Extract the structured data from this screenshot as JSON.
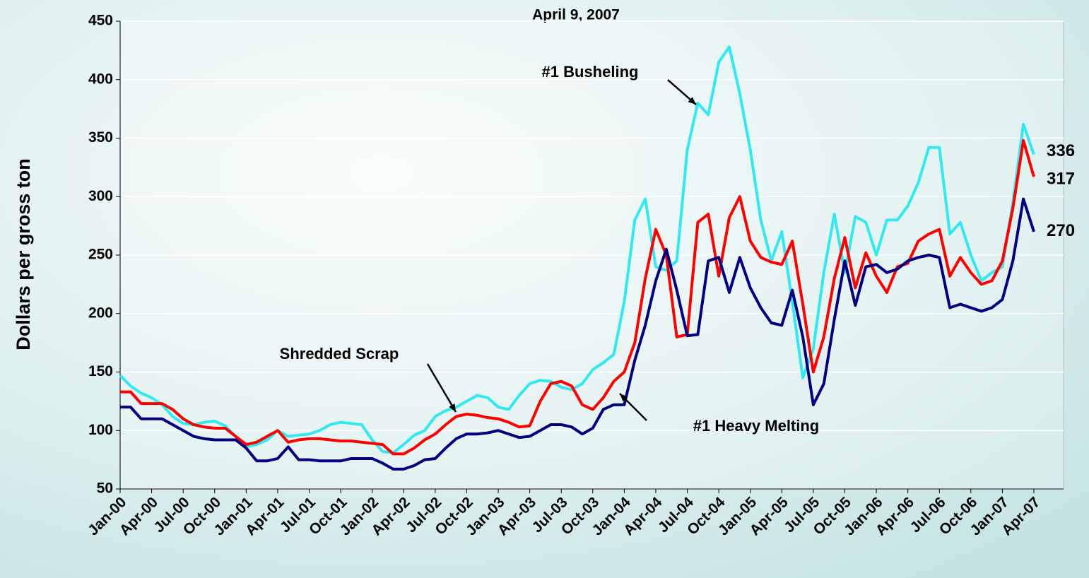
{
  "chart_data": {
    "type": "line",
    "title": "April 9, 2007",
    "y_label": "Dollars per gross ton",
    "categories": [
      "Jan-00",
      null,
      null,
      "Apr-00",
      null,
      null,
      "Jul-00",
      null,
      null,
      "Oct-00",
      null,
      null,
      "Jan-01",
      null,
      null,
      "Apr-01",
      null,
      null,
      "Jul-01",
      null,
      null,
      "Oct-01",
      null,
      null,
      "Jan-02",
      null,
      null,
      "Apr-02",
      null,
      null,
      "Jul-02",
      null,
      null,
      "Oct-02",
      null,
      null,
      "Jan-03",
      null,
      null,
      "Apr-03",
      null,
      null,
      "Jul-03",
      null,
      null,
      "Oct-03",
      null,
      null,
      "Jan-04",
      null,
      null,
      "Apr-04",
      null,
      null,
      "Jul-04",
      null,
      null,
      "Oct-04",
      null,
      null,
      "Jan-05",
      null,
      null,
      "Apr-05",
      null,
      null,
      "Jul-05",
      null,
      null,
      "Oct-05",
      null,
      null,
      "Jan-06",
      null,
      null,
      "Apr-06",
      null,
      null,
      "Jul-06",
      null,
      null,
      "Oct-06",
      null,
      null,
      "Jan-07",
      null,
      null,
      "Apr-07"
    ],
    "series": [
      {
        "name": "#1 Busheling",
        "color": "#33e8f2",
        "values": [
          147,
          138,
          132,
          128,
          122,
          112,
          106,
          105,
          107,
          108,
          104,
          95,
          86,
          88,
          92,
          100,
          95,
          96,
          97,
          100,
          105,
          107,
          106,
          105,
          92,
          82,
          81,
          88,
          96,
          100,
          112,
          117,
          120,
          125,
          130,
          128,
          120,
          118,
          130,
          140,
          143,
          142,
          137,
          135,
          140,
          152,
          158,
          165,
          210,
          280,
          298,
          240,
          237,
          245,
          340,
          380,
          370,
          415,
          428,
          388,
          340,
          280,
          245,
          270,
          210,
          145,
          170,
          235,
          285,
          235,
          283,
          278,
          250,
          280,
          280,
          292,
          312,
          342,
          342,
          268,
          278,
          250,
          228,
          235,
          240,
          295,
          362,
          336
        ]
      },
      {
        "name": "Shredded Scrap",
        "color": "#ff0000",
        "values": [
          133,
          133,
          123,
          123,
          123,
          118,
          110,
          105,
          103,
          102,
          102,
          95,
          88,
          90,
          95,
          100,
          90,
          92,
          93,
          93,
          92,
          91,
          91,
          90,
          89,
          88,
          80,
          80,
          85,
          92,
          97,
          105,
          112,
          114,
          113,
          111,
          110,
          107,
          103,
          104,
          125,
          140,
          142,
          138,
          122,
          118,
          128,
          142,
          150,
          175,
          230,
          272,
          250,
          180,
          182,
          278,
          285,
          232,
          282,
          300,
          262,
          248,
          244,
          242,
          262,
          208,
          150,
          180,
          230,
          265,
          222,
          252,
          232,
          218,
          240,
          243,
          262,
          268,
          272,
          232,
          248,
          235,
          225,
          228,
          245,
          290,
          348,
          317
        ]
      },
      {
        "name": "#1 Heavy Melting",
        "color": "#000080",
        "values": [
          120,
          120,
          110,
          110,
          110,
          105,
          100,
          95,
          93,
          92,
          92,
          92,
          85,
          74,
          74,
          76,
          86,
          75,
          75,
          74,
          74,
          74,
          76,
          76,
          76,
          72,
          67,
          67,
          70,
          75,
          76,
          85,
          93,
          97,
          97,
          98,
          100,
          97,
          94,
          95,
          100,
          105,
          105,
          103,
          97,
          102,
          118,
          122,
          122,
          160,
          190,
          228,
          255,
          220,
          181,
          182,
          245,
          248,
          218,
          248,
          222,
          205,
          192,
          190,
          220,
          180,
          122,
          140,
          195,
          245,
          207,
          240,
          242,
          235,
          238,
          245,
          248,
          250,
          248,
          205,
          208,
          205,
          202,
          205,
          212,
          245,
          298,
          270
        ]
      }
    ],
    "ylim": [
      50,
      450
    ],
    "yticks": [
      50,
      100,
      150,
      200,
      250,
      300,
      350,
      400,
      450
    ],
    "grid": true
  }
}
